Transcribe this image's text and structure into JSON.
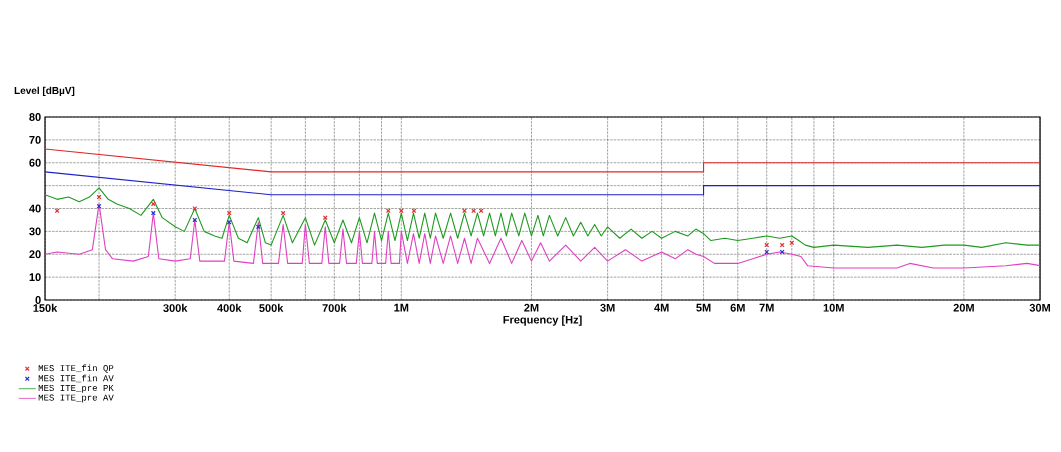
{
  "chart_data": {
    "type": "line",
    "xlabel": "Frequency [Hz]",
    "ylabel": "Level [dBµV]",
    "log": "x",
    "grid": true,
    "legend": "bottom",
    "xlim": [
      150000,
      30000000
    ],
    "ylim": [
      0,
      80
    ],
    "xticks": [
      {
        "value": 150000,
        "label": "150k"
      },
      {
        "value": 200000,
        "label": null
      },
      {
        "value": 300000,
        "label": "300k"
      },
      {
        "value": 400000,
        "label": "400k"
      },
      {
        "value": 500000,
        "label": "500k"
      },
      {
        "value": 600000,
        "label": null
      },
      {
        "value": 700000,
        "label": "700k"
      },
      {
        "value": 800000,
        "label": null
      },
      {
        "value": 900000,
        "label": null
      },
      {
        "value": 1000000,
        "label": "1M"
      },
      {
        "value": 2000000,
        "label": "2M"
      },
      {
        "value": 3000000,
        "label": "3M"
      },
      {
        "value": 4000000,
        "label": "4M"
      },
      {
        "value": 5000000,
        "label": "5M"
      },
      {
        "value": 6000000,
        "label": "6M"
      },
      {
        "value": 7000000,
        "label": "7M"
      },
      {
        "value": 8000000,
        "label": null
      },
      {
        "value": 9000000,
        "label": null
      },
      {
        "value": 10000000,
        "label": "10M"
      },
      {
        "value": 20000000,
        "label": "20M"
      },
      {
        "value": 30000000,
        "label": "30M"
      }
    ],
    "yticks": [
      0,
      10,
      20,
      30,
      40,
      {
        "value": 50,
        "label": null
      },
      60,
      70,
      80
    ],
    "series": [
      {
        "color": "#e02828",
        "x": [
          150000,
          500000,
          5000000,
          5000000,
          30000000
        ],
        "values": [
          66,
          56,
          56,
          60,
          60
        ]
      },
      {
        "color": "#1c22c8",
        "x": [
          150000,
          500000,
          5000000,
          5000000,
          30000000
        ],
        "values": [
          56,
          46,
          46,
          50,
          50
        ]
      },
      {
        "name": "MES ITE_fin QP",
        "type": "scatter",
        "marker": "cross",
        "color": "#e03030",
        "x": [
          160000,
          200000,
          267000,
          333000,
          400000,
          533000,
          667000,
          933000,
          1000000,
          1070000,
          1400000,
          1470000,
          1530000,
          7000000,
          7600000,
          8000000
        ],
        "values": [
          39,
          45,
          42,
          40,
          38,
          38,
          36,
          39,
          39,
          39,
          39,
          39,
          39,
          24,
          24,
          25
        ]
      },
      {
        "name": "MES ITE_fin AV",
        "type": "scatter",
        "marker": "cross",
        "color": "#2030d0",
        "x": [
          200000,
          267000,
          333000,
          400000,
          467000,
          7000000,
          7600000
        ],
        "values": [
          41,
          38,
          35,
          34,
          32,
          21,
          21
        ]
      },
      {
        "name": "MES ITE_pre PK",
        "color": "#1e9a1e",
        "x": [
          150000,
          160000,
          170000,
          180000,
          190000,
          200000,
          210000,
          220000,
          235000,
          250000,
          267000,
          280000,
          300000,
          315000,
          333000,
          350000,
          370000,
          385000,
          400000,
          420000,
          440000,
          467000,
          485000,
          500000,
          533000,
          560000,
          600000,
          630000,
          667000,
          700000,
          733000,
          767000,
          800000,
          833000,
          867000,
          900000,
          933000,
          967000,
          1000000,
          1033000,
          1067000,
          1100000,
          1133000,
          1167000,
          1200000,
          1250000,
          1300000,
          1350000,
          1400000,
          1450000,
          1500000,
          1550000,
          1600000,
          1650000,
          1700000,
          1750000,
          1800000,
          1870000,
          1930000,
          2000000,
          2070000,
          2130000,
          2200000,
          2300000,
          2400000,
          2500000,
          2600000,
          2700000,
          2800000,
          2900000,
          3000000,
          3200000,
          3400000,
          3600000,
          3800000,
          4000000,
          4300000,
          4600000,
          4800000,
          5000000,
          5200000,
          5600000,
          6000000,
          6500000,
          7000000,
          7500000,
          8000000,
          8300000,
          8600000,
          9000000,
          10000000,
          12000000,
          14000000,
          16000000,
          18000000,
          20000000,
          22000000,
          25000000,
          28000000,
          30000000
        ],
        "values": [
          46,
          44,
          45,
          43,
          45,
          49,
          44,
          42,
          40,
          37,
          44,
          36,
          32,
          30,
          40,
          30,
          28,
          27,
          37,
          27,
          25,
          36,
          25,
          24,
          37,
          25,
          36,
          24,
          35,
          25,
          35,
          25,
          36,
          25,
          38,
          26,
          38,
          26,
          38,
          26,
          38,
          27,
          38,
          27,
          38,
          27,
          38,
          27,
          38,
          28,
          38,
          28,
          38,
          28,
          38,
          28,
          38,
          28,
          38,
          28,
          37,
          28,
          37,
          28,
          36,
          28,
          34,
          28,
          33,
          28,
          32,
          27,
          31,
          27,
          30,
          27,
          30,
          28,
          31,
          29,
          26,
          27,
          26,
          27,
          28,
          27,
          28,
          26,
          24,
          23,
          24,
          23,
          24,
          23,
          24,
          24,
          23,
          25,
          24,
          24
        ]
      },
      {
        "name": "MES ITE_pre AV",
        "color": "#e040c0",
        "x": [
          150000,
          160000,
          180000,
          193000,
          200000,
          207000,
          215000,
          240000,
          260000,
          267000,
          275000,
          300000,
          325000,
          333000,
          342000,
          390000,
          400000,
          410000,
          455000,
          467000,
          478000,
          520000,
          533000,
          546000,
          590000,
          600000,
          613000,
          655000,
          667000,
          680000,
          720000,
          733000,
          747000,
          787000,
          800000,
          813000,
          855000,
          867000,
          880000,
          920000,
          933000,
          947000,
          990000,
          1000000,
          1033000,
          1067000,
          1100000,
          1133000,
          1167000,
          1200000,
          1250000,
          1300000,
          1350000,
          1400000,
          1450000,
          1500000,
          1600000,
          1700000,
          1800000,
          1900000,
          2000000,
          2100000,
          2200000,
          2400000,
          2600000,
          2800000,
          3000000,
          3300000,
          3600000,
          4000000,
          4300000,
          4600000,
          4800000,
          5000000,
          5300000,
          6000000,
          6500000,
          7000000,
          7500000,
          8000000,
          8400000,
          8700000,
          10000000,
          14000000,
          15000000,
          17000000,
          20000000,
          25000000,
          28000000,
          30000000
        ],
        "values": [
          20,
          21,
          20,
          22,
          42,
          22,
          18,
          17,
          19,
          38,
          18,
          17,
          18,
          35,
          17,
          17,
          34,
          17,
          16,
          34,
          16,
          16,
          33,
          16,
          16,
          33,
          16,
          16,
          32,
          16,
          16,
          31,
          16,
          16,
          30,
          16,
          16,
          30,
          16,
          16,
          30,
          16,
          16,
          30,
          16,
          29,
          16,
          29,
          16,
          28,
          16,
          28,
          16,
          27,
          16,
          27,
          16,
          27,
          16,
          26,
          17,
          25,
          17,
          24,
          17,
          23,
          17,
          22,
          17,
          21,
          18,
          22,
          20,
          19,
          16,
          16,
          18,
          20,
          21,
          20,
          19,
          15,
          14,
          14,
          16,
          14,
          14,
          15,
          16,
          15
        ]
      }
    ]
  }
}
